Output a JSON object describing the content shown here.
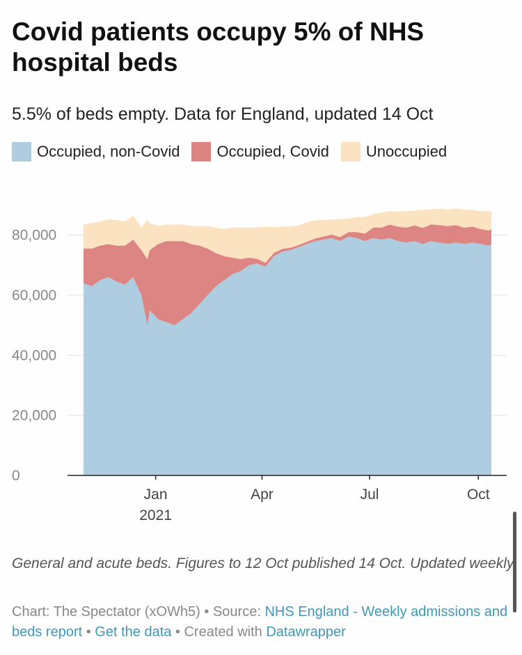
{
  "title": "Covid patients occupy 5% of NHS hospital beds",
  "subtitle": "5.5% of beds empty. Data for England, updated 14 Oct",
  "legend": [
    {
      "label": "Occupied, non-Covid",
      "color": "#aecde0"
    },
    {
      "label": "Occupied, Covid",
      "color": "#dd8583"
    },
    {
      "label": "Unoccupied",
      "color": "#fbe2c1"
    }
  ],
  "chart_data": {
    "type": "area",
    "stacked": true,
    "x_domain": [
      "2020-11-01",
      "2021-10-12"
    ],
    "ylim": [
      0,
      95000
    ],
    "yticks": [
      {
        "value": 0,
        "label": "0"
      },
      {
        "value": 20000,
        "label": "20,000"
      },
      {
        "value": 40000,
        "label": "40,000"
      },
      {
        "value": 60000,
        "label": "60,000"
      },
      {
        "value": 80000,
        "label": "80,000"
      }
    ],
    "xticks": [
      {
        "date": "2021-01-01",
        "label": "Jan",
        "sublabel": "2021"
      },
      {
        "date": "2021-04-01",
        "label": "Apr",
        "sublabel": ""
      },
      {
        "date": "2021-07-01",
        "label": "Jul",
        "sublabel": ""
      },
      {
        "date": "2021-10-01",
        "label": "Oct",
        "sublabel": ""
      }
    ],
    "grid": true,
    "x": [
      "2020-11-01",
      "2020-11-08",
      "2020-11-15",
      "2020-11-22",
      "2020-11-29",
      "2020-12-06",
      "2020-12-13",
      "2020-12-20",
      "2020-12-25",
      "2020-12-27",
      "2021-01-03",
      "2021-01-10",
      "2021-01-17",
      "2021-01-24",
      "2021-01-31",
      "2021-02-07",
      "2021-02-14",
      "2021-02-21",
      "2021-02-28",
      "2021-03-07",
      "2021-03-14",
      "2021-03-21",
      "2021-03-28",
      "2021-04-04",
      "2021-04-11",
      "2021-04-18",
      "2021-04-25",
      "2021-05-02",
      "2021-05-09",
      "2021-05-16",
      "2021-05-23",
      "2021-05-30",
      "2021-06-06",
      "2021-06-13",
      "2021-06-20",
      "2021-06-27",
      "2021-07-04",
      "2021-07-11",
      "2021-07-18",
      "2021-07-25",
      "2021-08-01",
      "2021-08-08",
      "2021-08-15",
      "2021-08-22",
      "2021-08-29",
      "2021-09-05",
      "2021-09-12",
      "2021-09-19",
      "2021-09-26",
      "2021-10-03",
      "2021-10-10",
      "2021-10-12"
    ],
    "series": [
      {
        "name": "Occupied, non-Covid",
        "color": "#aecde0",
        "values": [
          64000,
          63000,
          65000,
          66000,
          64500,
          63500,
          66000,
          60000,
          50000,
          55000,
          52000,
          51000,
          50000,
          52000,
          54000,
          57000,
          60000,
          63000,
          65000,
          67000,
          68000,
          70000,
          70500,
          69500,
          73000,
          74500,
          75000,
          76000,
          77000,
          78000,
          78500,
          79000,
          78000,
          79500,
          79000,
          78000,
          79000,
          78500,
          79000,
          78000,
          77500,
          78000,
          77000,
          78000,
          77500,
          77000,
          77500,
          77000,
          77500,
          77000,
          76500,
          77000
        ]
      },
      {
        "name": "Occupied, Covid",
        "color": "#dd8583",
        "values": [
          11500,
          12500,
          11500,
          11000,
          12000,
          13000,
          12500,
          15000,
          22000,
          20000,
          25000,
          27000,
          28000,
          26000,
          23000,
          19500,
          15500,
          11000,
          8000,
          5500,
          4000,
          2500,
          1600,
          1300,
          1100,
          900,
          800,
          700,
          800,
          900,
          1000,
          1200,
          1300,
          1500,
          2000,
          2500,
          3500,
          4000,
          4500,
          4800,
          5000,
          5200,
          5400,
          5600,
          5800,
          6000,
          5800,
          5500,
          5300,
          5000,
          5000,
          5000
        ]
      },
      {
        "name": "Unoccupied",
        "color": "#fbe2c1",
        "values": [
          8000,
          8500,
          8000,
          8200,
          8500,
          8000,
          8000,
          7500,
          13000,
          9000,
          6000,
          5500,
          5500,
          5500,
          6000,
          6500,
          7500,
          8500,
          9000,
          10000,
          10500,
          10000,
          10500,
          12000,
          8500,
          7500,
          7000,
          6500,
          6500,
          6000,
          5500,
          5000,
          6000,
          4500,
          5000,
          5500,
          4500,
          5000,
          4500,
          5000,
          5500,
          5000,
          6000,
          5000,
          5500,
          5500,
          5500,
          6000,
          5500,
          6000,
          6500,
          5700
        ]
      }
    ]
  },
  "notes": "General and acute beds. Figures to 12 Oct published 14 Oct. Updated weekly",
  "credit": {
    "prefix": "Chart: The Spectator (xOWh5) • Source: ",
    "source_link": "NHS England - Weekly admissions and beds report",
    "sep1": " • ",
    "data_link": "Get the data",
    "sep2": " • Created with ",
    "tool_link": "Datawrapper"
  }
}
